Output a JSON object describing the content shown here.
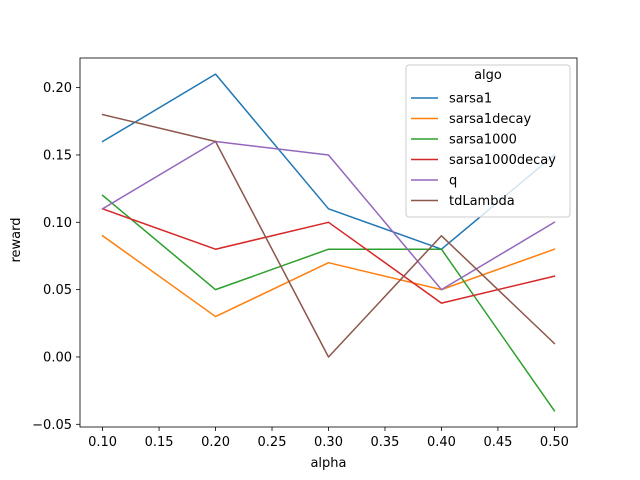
{
  "chart_data": {
    "type": "line",
    "xlabel": "alpha",
    "ylabel": "reward",
    "x": [
      0.1,
      0.2,
      0.3,
      0.4,
      0.5
    ],
    "xticks": [
      "0.10",
      "0.15",
      "0.20",
      "0.25",
      "0.30",
      "0.35",
      "0.40",
      "0.45",
      "0.50"
    ],
    "yticks": [
      "−0.05",
      "0.00",
      "0.05",
      "0.10",
      "0.15",
      "0.20"
    ],
    "xlim": [
      0.08,
      0.52
    ],
    "ylim": [
      -0.052,
      0.222
    ],
    "grid": false,
    "legend": {
      "title": "algo",
      "placement": "top-right"
    },
    "series": [
      {
        "name": "sarsa1",
        "color": "#1f77b4",
        "values": [
          0.16,
          0.21,
          0.11,
          0.08,
          0.15
        ]
      },
      {
        "name": "sarsa1decay",
        "color": "#ff7f0e",
        "values": [
          0.09,
          0.03,
          0.07,
          0.05,
          0.08
        ]
      },
      {
        "name": "sarsa1000",
        "color": "#2ca02c",
        "values": [
          0.12,
          0.05,
          0.08,
          0.08,
          -0.04
        ]
      },
      {
        "name": "sarsa1000decay",
        "color": "#d62728",
        "values": [
          0.11,
          0.08,
          0.1,
          0.04,
          0.06
        ]
      },
      {
        "name": "q",
        "color": "#9467bd",
        "values": [
          0.11,
          0.16,
          0.15,
          0.05,
          0.1
        ]
      },
      {
        "name": "tdLambda",
        "color": "#8c564b",
        "values": [
          0.18,
          0.16,
          0.0,
          0.09,
          0.01
        ]
      }
    ]
  }
}
